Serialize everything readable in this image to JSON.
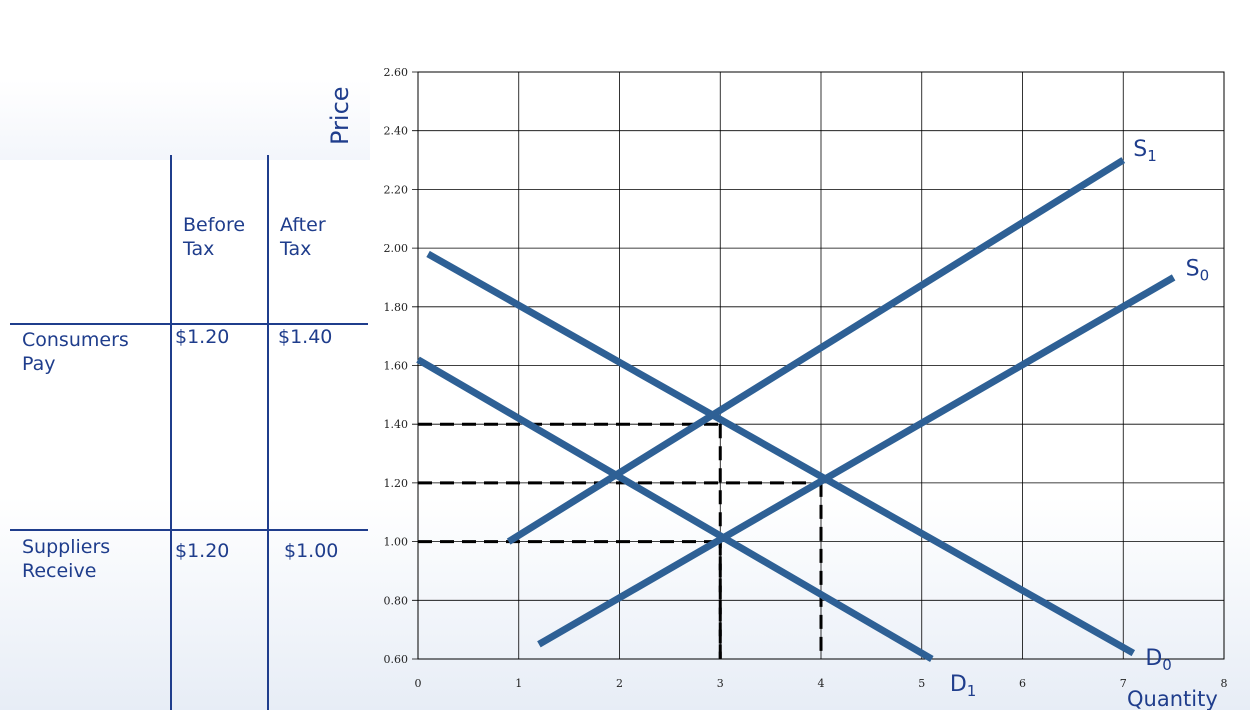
{
  "table": {
    "headers": [
      "",
      "Before Tax",
      "After Tax"
    ],
    "rows": [
      {
        "label": "Consumers Pay",
        "before": "$1.20",
        "after": "$1.40"
      },
      {
        "label": "Suppliers Receive",
        "before": "$1.20",
        "after": "$1.00"
      }
    ],
    "header_lines": {
      "before": [
        "Before",
        "Tax"
      ],
      "after": [
        "After",
        "Tax"
      ]
    },
    "row_lines": {
      "consumers": [
        "Consumers",
        "Pay"
      ],
      "suppliers": [
        "Suppliers",
        "Receive"
      ]
    }
  },
  "colors": {
    "table_blue": "#1f3d8c",
    "curve": "#2e6095",
    "grid": "#000000",
    "dash": "#000000"
  },
  "chart_data": {
    "type": "line",
    "title": "",
    "xlabel": "Quantity",
    "ylabel": "Price",
    "xlim": [
      0,
      8
    ],
    "ylim": [
      0.6,
      2.6
    ],
    "x_ticks": [
      "0",
      "1",
      "2",
      "3",
      "4",
      "5",
      "6",
      "7",
      "8"
    ],
    "y_ticks": [
      "0.60",
      "0.80",
      "1.00",
      "1.20",
      "1.40",
      "1.60",
      "1.80",
      "2.00",
      "2.20",
      "2.40",
      "2.60"
    ],
    "grid": true,
    "series": [
      {
        "name": "S1",
        "label_main": "S",
        "label_sub": "1",
        "points": [
          [
            0.9,
            1.0
          ],
          [
            7.0,
            2.3
          ]
        ]
      },
      {
        "name": "S0",
        "label_main": "S",
        "label_sub": "0",
        "points": [
          [
            1.2,
            0.65
          ],
          [
            7.5,
            1.9
          ]
        ]
      },
      {
        "name": "D0",
        "label_main": "D",
        "label_sub": "0",
        "points": [
          [
            0.1,
            1.98
          ],
          [
            7.1,
            0.62
          ]
        ]
      },
      {
        "name": "D1",
        "label_main": "D",
        "label_sub": "1",
        "points": [
          [
            0.0,
            1.62
          ],
          [
            5.1,
            0.6
          ]
        ]
      }
    ],
    "reference_lines": [
      {
        "price": 1.4,
        "quantity": 3
      },
      {
        "price": 1.2,
        "quantity": 4
      },
      {
        "price": 1.0,
        "quantity": 3
      }
    ]
  }
}
